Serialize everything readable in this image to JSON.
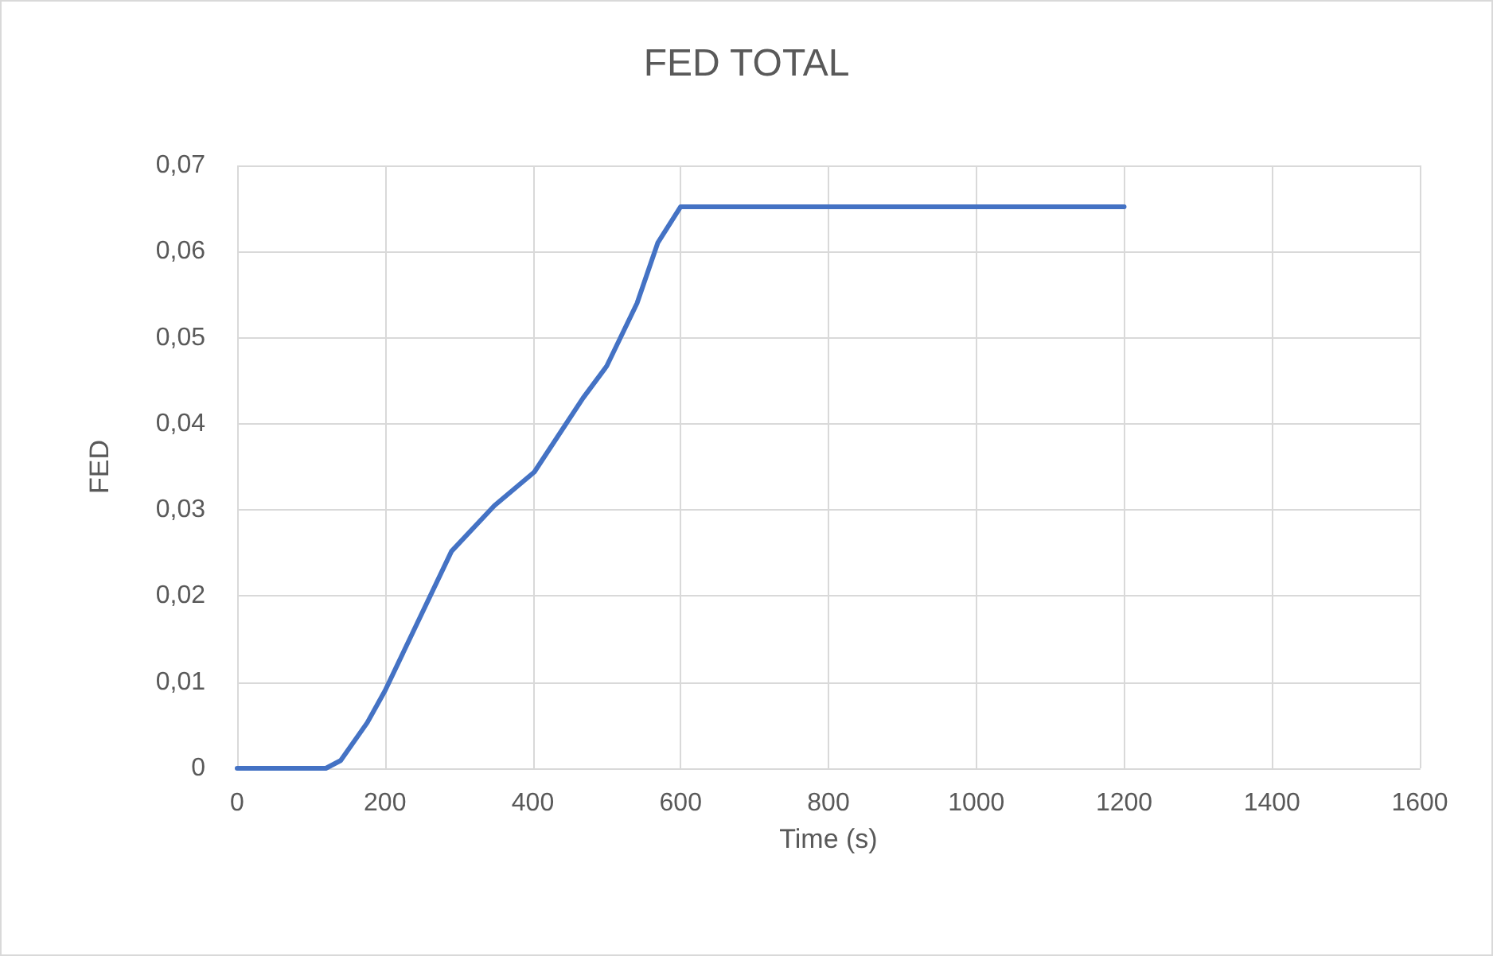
{
  "chart_data": {
    "type": "line",
    "title": "FED TOTAL",
    "xlabel": "Time (s)",
    "ylabel": "FED",
    "series": [
      {
        "color": "#4472c4",
        "x": [
          0,
          120,
          140,
          176,
          200,
          290,
          348,
          402,
          468,
          500,
          541,
          569,
          600,
          1200
        ],
        "values": [
          0,
          0,
          0.0009,
          0.0053,
          0.009,
          0.0252,
          0.0305,
          0.0344,
          0.043,
          0.0467,
          0.054,
          0.061,
          0.0652,
          0.0652
        ]
      }
    ],
    "xlim": [
      0,
      1600
    ],
    "xticks": [
      0,
      200,
      400,
      600,
      800,
      1000,
      1200,
      1400,
      1600
    ],
    "ylim": [
      0,
      0.07
    ],
    "yticks": [
      {
        "value": 0,
        "label": "0"
      },
      {
        "value": 0.01,
        "label": "0,01"
      },
      {
        "value": 0.02,
        "label": "0,02"
      },
      {
        "value": 0.03,
        "label": "0,03"
      },
      {
        "value": 0.04,
        "label": "0,04"
      },
      {
        "value": 0.05,
        "label": "0,05"
      },
      {
        "value": 0.06,
        "label": "0,06"
      },
      {
        "value": 0.07,
        "label": "0,07"
      }
    ],
    "grid": true,
    "marker": "none",
    "line_style": "solid"
  }
}
